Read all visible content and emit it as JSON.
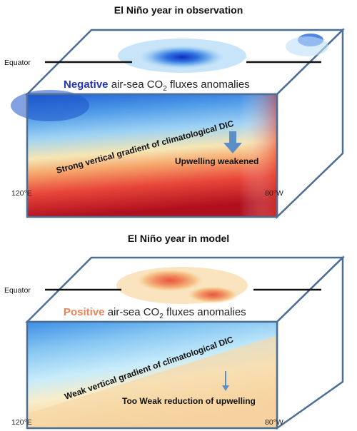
{
  "top": {
    "title": "El Niño year in observation",
    "equator": "Equator",
    "flux_word": "Negative",
    "flux_rest": " air-sea CO",
    "flux_sub": "2",
    "flux_tail": " fluxes anomalies",
    "gradient": "Strong vertical gradient of climatological DIC",
    "upwelling": "Upwelling weakened",
    "lon_west": "120°E",
    "lon_east": "80°W",
    "accent": "#2233bb"
  },
  "bottom": {
    "title": "El Niño year in model",
    "equator": "Equator",
    "flux_word": "Positive",
    "flux_rest": " air-sea CO",
    "flux_sub": "2",
    "flux_tail": " fluxes anomalies",
    "gradient": "Weak vertical gradient of climatological DIC",
    "upwelling": "Too Weak reduction of upwelling",
    "lon_west": "120°E",
    "lon_east": "80°W",
    "accent": "#e8845a"
  },
  "icons": {
    "top_arrow": "down-arrow-icon",
    "bottom_arrow": "down-arrow-icon"
  }
}
